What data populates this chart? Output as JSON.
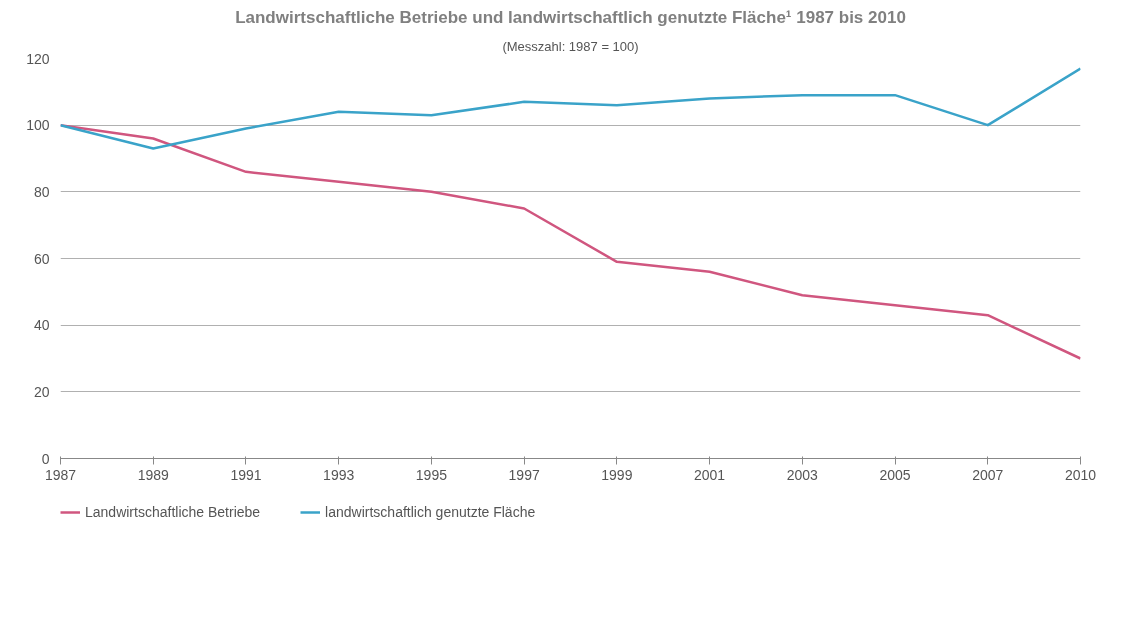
{
  "chart_data": {
    "type": "line",
    "title": "Landwirtschaftliche Betriebe und landwirtschaftlich genutzte Fläche¹ 1987 bis 2010",
    "subtitle": "(Messzahl: 1987 = 100)",
    "categories": [
      "1987",
      "1989",
      "1991",
      "1993",
      "1995",
      "1997",
      "1999",
      "2001",
      "2003",
      "2005",
      "2007",
      "2010"
    ],
    "series": [
      {
        "name": "Landwirtschaftliche Betriebe",
        "color": "#d0567f",
        "values": [
          100,
          96,
          86,
          83,
          80,
          75,
          59,
          56,
          49,
          46,
          43,
          30
        ]
      },
      {
        "name": "landwirtschaftlich genutzte Fläche",
        "color": "#3aa3c9",
        "values": [
          100,
          93,
          99,
          104,
          103,
          107,
          106,
          108,
          109,
          109,
          100,
          117
        ]
      }
    ],
    "ylim": [
      0,
      120
    ],
    "yticks": [
      0,
      20,
      40,
      60,
      80,
      100,
      120
    ],
    "grid": "y",
    "legend": "bottom",
    "marker": "none",
    "line_style": "solid"
  }
}
